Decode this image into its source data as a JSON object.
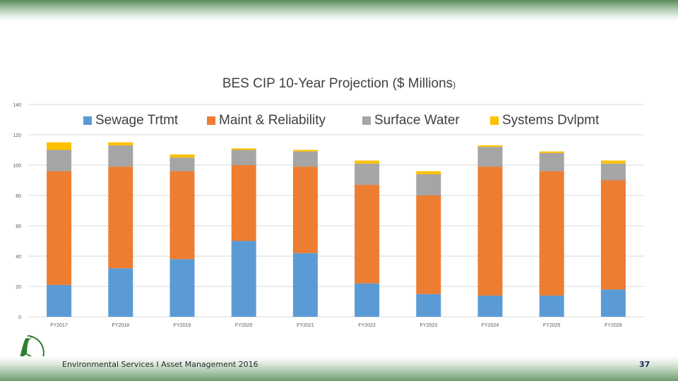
{
  "chart_data": {
    "type": "bar",
    "stacked": true,
    "title": "BES CIP 10-Year Projection ($ Millions",
    "title_suffix": ")",
    "categories": [
      "FY2017",
      "FY2018",
      "FY2019",
      "FY2020",
      "FY2021",
      "FY2022",
      "FY2023",
      "FY2024",
      "FY2025",
      "FY2026"
    ],
    "series": [
      {
        "name": "Sewage Trtmt",
        "color": "#5b9bd5",
        "values": [
          21,
          32,
          38,
          50,
          42,
          22,
          15,
          14,
          14,
          18
        ]
      },
      {
        "name": "Maint & Reliability",
        "color": "#ed7d31",
        "values": [
          75,
          67,
          58,
          50,
          57,
          65,
          65,
          85,
          82,
          72
        ]
      },
      {
        "name": "Surface Water",
        "color": "#a5a5a5",
        "values": [
          14,
          14,
          9,
          10,
          10,
          14,
          14,
          13,
          12,
          11
        ]
      },
      {
        "name": "Systems Dvlpmt",
        "color": "#ffc000",
        "values": [
          5,
          2,
          2,
          1,
          1,
          2,
          2,
          1,
          1,
          2
        ]
      }
    ],
    "ylim": [
      0,
      140
    ],
    "yticks": [
      0,
      20,
      40,
      60,
      80,
      100,
      120,
      140
    ],
    "grid": true,
    "legend": "top"
  },
  "footer": {
    "text": "Environmental Services   I   Asset Management 2016",
    "page_number": "37"
  }
}
